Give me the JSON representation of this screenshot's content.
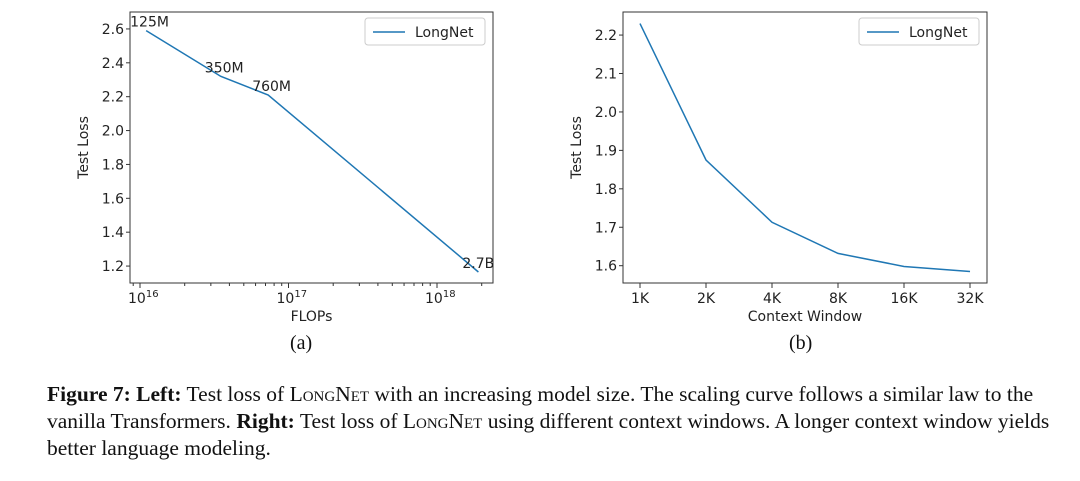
{
  "chart_data": [
    {
      "type": "line",
      "xscale": "log",
      "xlabel": "FLOPs",
      "ylabel": "Test Loss",
      "xlim": [
        8000000000000000.0,
        2.5e+18
      ],
      "ylim": [
        1.1,
        2.7
      ],
      "xticks": [
        {
          "value": 1e+16,
          "base": "10",
          "exp": "16"
        },
        {
          "value": 1e+17,
          "base": "10",
          "exp": "17"
        },
        {
          "value": 1e+18,
          "base": "10",
          "exp": "18"
        }
      ],
      "yticks": [
        1.2,
        1.4,
        1.6,
        1.8,
        2.0,
        2.2,
        2.4,
        2.6
      ],
      "ytick_labels": [
        "1.2",
        "1.4",
        "1.6",
        "1.8",
        "2.0",
        "2.2",
        "2.4",
        "2.6"
      ],
      "legend": {
        "position": "top-right",
        "entries": [
          "LongNet"
        ]
      },
      "series": [
        {
          "name": "LongNet",
          "color": "#1f77b4",
          "x": [
            1.1e+16,
            3.5e+16,
            7.3e+16,
            1.9e+18
          ],
          "y": [
            2.59,
            2.32,
            2.21,
            1.165
          ],
          "labels": [
            "125M",
            "350M",
            "760M",
            "2.7B"
          ]
        }
      ],
      "grid": false,
      "subcaption": "(a)"
    },
    {
      "type": "line",
      "xlabel": "Context Window",
      "ylabel": "Test Loss",
      "categories": [
        "1K",
        "2K",
        "4K",
        "8K",
        "16K",
        "32K"
      ],
      "ylim": [
        1.555,
        2.26
      ],
      "yticks": [
        1.6,
        1.7,
        1.8,
        1.9,
        2.0,
        2.1,
        2.2
      ],
      "ytick_labels": [
        "1.6",
        "1.7",
        "1.8",
        "1.9",
        "2.0",
        "2.1",
        "2.2"
      ],
      "legend": {
        "position": "top-right",
        "entries": [
          "LongNet"
        ]
      },
      "series": [
        {
          "name": "LongNet",
          "color": "#1f77b4",
          "values": [
            2.23,
            1.875,
            1.713,
            1.632,
            1.598,
            1.585
          ]
        }
      ],
      "grid": false,
      "subcaption": "(b)"
    }
  ],
  "caption": {
    "figure": "Figure 7:",
    "left_label": "Left:",
    "left_pre": "Test loss of",
    "name1": "LongNet",
    "left_post": "with an increasing model size. The scaling curve follows a similar law to the vanilla Transformers.",
    "right_label": "Right:",
    "right_pre": "Test loss of",
    "name2": "LongNet",
    "right_post": "using different context windows. A longer context window yields better language modeling."
  }
}
